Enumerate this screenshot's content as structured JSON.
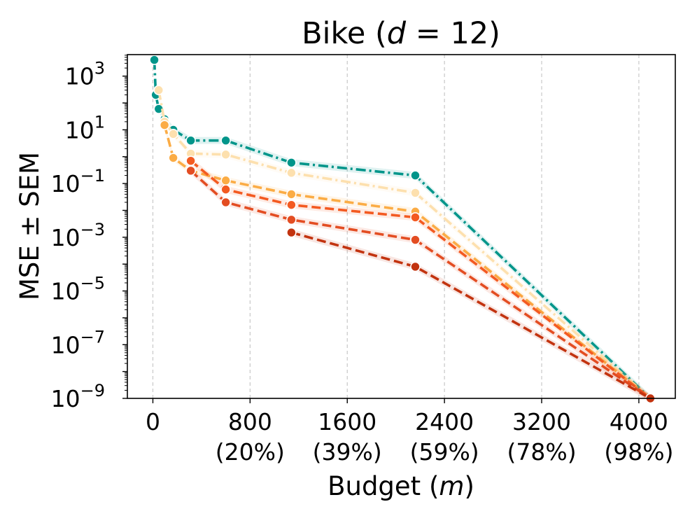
{
  "chart_data": {
    "type": "line",
    "title": "Bike (",
    "title_var": "d",
    "title_rest": " = 12)",
    "xlabel": "Budget (",
    "xlabel_var": "m",
    "xlabel_rest": ")",
    "ylabel": "MSE ± SEM",
    "yscale": "log",
    "xlim": [
      -210,
      4300
    ],
    "ylim_exp": [
      -9,
      3.8
    ],
    "x_ticks": [
      {
        "value": 0,
        "label": "0",
        "sub": ""
      },
      {
        "value": 800,
        "label": "800",
        "sub": "(20%)"
      },
      {
        "value": 1600,
        "label": "1600",
        "sub": "(39%)"
      },
      {
        "value": 2400,
        "label": "2400",
        "sub": "(59%)"
      },
      {
        "value": 3200,
        "label": "3200",
        "sub": "(78%)"
      },
      {
        "value": 4000,
        "label": "4000",
        "sub": "(98%)"
      }
    ],
    "y_ticks": [
      {
        "exp": 3,
        "label": "10",
        "sup": "3"
      },
      {
        "exp": 1,
        "label": "10",
        "sup": "1"
      },
      {
        "exp": -1,
        "label": "10",
        "sup": "−1"
      },
      {
        "exp": -3,
        "label": "10",
        "sup": "−3"
      },
      {
        "exp": -5,
        "label": "10",
        "sup": "−5"
      },
      {
        "exp": -7,
        "label": "10",
        "sup": "−7"
      },
      {
        "exp": -9,
        "label": "10",
        "sup": "−9"
      }
    ],
    "grid": "vertical dashed",
    "series": [
      {
        "name": "series-1",
        "color": "#00958a",
        "dash": "dashdot",
        "points": [
          [
            12,
            4000
          ],
          [
            24,
            200
          ],
          [
            48,
            60
          ],
          [
            96,
            25
          ],
          [
            168,
            10
          ],
          [
            312,
            4
          ],
          [
            600,
            4
          ],
          [
            1140,
            0.6
          ],
          [
            2160,
            0.2
          ],
          [
            4095,
            1e-09
          ]
        ]
      },
      {
        "name": "series-2",
        "color": "#fde0ae",
        "dash": "dashdot",
        "points": [
          [
            48,
            300
          ],
          [
            96,
            20
          ],
          [
            168,
            7
          ],
          [
            312,
            1.3
          ],
          [
            600,
            1.2
          ],
          [
            1140,
            0.25
          ],
          [
            2160,
            0.045
          ],
          [
            4095,
            1e-09
          ]
        ]
      },
      {
        "name": "series-3",
        "color": "#fbac45",
        "dash": "dashed",
        "points": [
          [
            96,
            15
          ],
          [
            168,
            0.9
          ],
          [
            312,
            0.3
          ],
          [
            600,
            0.13
          ],
          [
            1140,
            0.04
          ],
          [
            2160,
            0.009
          ],
          [
            4095,
            1e-09
          ]
        ]
      },
      {
        "name": "series-4",
        "color": "#f35a21",
        "dash": "dashed",
        "points": [
          [
            312,
            0.7
          ],
          [
            600,
            0.06
          ],
          [
            1140,
            0.016
          ],
          [
            2160,
            0.0055
          ],
          [
            4095,
            1e-09
          ]
        ]
      },
      {
        "name": "series-5",
        "color": "#e34d22",
        "dash": "dashed",
        "points": [
          [
            312,
            0.3
          ],
          [
            600,
            0.02
          ],
          [
            1140,
            0.0045
          ],
          [
            2160,
            0.0008
          ],
          [
            4095,
            1e-09
          ]
        ]
      },
      {
        "name": "series-6",
        "color": "#c2330f",
        "dash": "dashed",
        "points": [
          [
            1140,
            0.0015
          ],
          [
            2160,
            8e-05
          ],
          [
            4095,
            1e-09
          ]
        ]
      }
    ]
  }
}
